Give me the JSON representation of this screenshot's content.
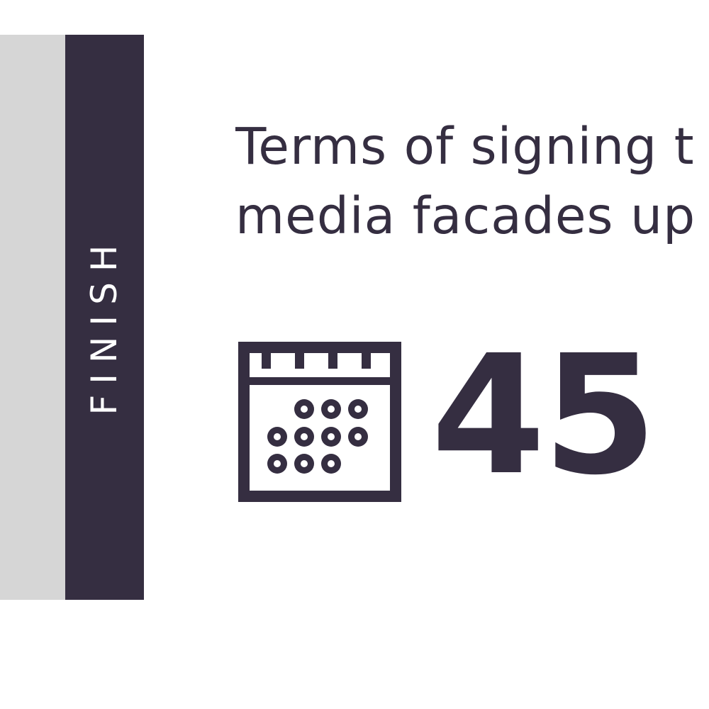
{
  "side_label": "FINISH",
  "heading": {
    "line1": "Terms of signing t",
    "line2": "media facades up"
  },
  "duration": {
    "value": "45 –",
    "icon": "calendar-icon"
  },
  "colors": {
    "dark": "#352e41",
    "grey": "#d6d6d6",
    "background": "#ffffff"
  }
}
